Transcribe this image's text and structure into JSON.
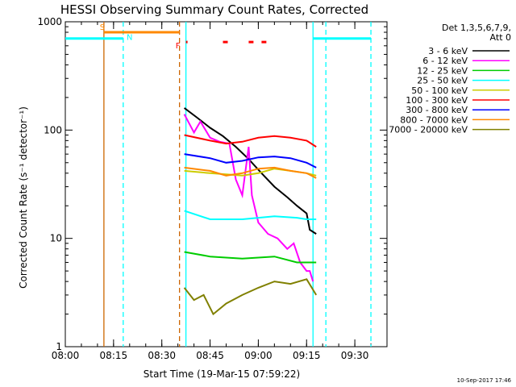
{
  "chart_data": {
    "type": "line",
    "title": "HESSI Observing Summary Count Rates, Corrected",
    "xlabel": "Start Time (19-Mar-15 07:59:22)",
    "ylabel": "Corrected Count Rate (s⁻¹ detector⁻¹)",
    "x_ticks": [
      "08:00",
      "08:15",
      "08:30",
      "08:45",
      "09:00",
      "09:15",
      "09:30"
    ],
    "x_tick_minutes": [
      0,
      15,
      30,
      45,
      60,
      75,
      90
    ],
    "xlim_minutes": [
      0,
      100
    ],
    "y_scale": "log",
    "ylim": [
      1,
      1000
    ],
    "y_ticks": [
      "1",
      "10",
      "100",
      "1000"
    ],
    "y_tick_values": [
      1,
      10,
      100,
      1000
    ],
    "legend_header": [
      "Det 1,3,5,6,7,9,",
      "Att 0"
    ],
    "legend_placement": "right",
    "footer_date": "10-Sep-2017 17:46",
    "series": [
      {
        "name": "3 - 6 keV",
        "color": "#000000",
        "x": [
          37,
          41,
          45,
          49,
          53,
          57,
          61,
          65,
          69,
          72,
          75,
          76,
          78
        ],
        "y": [
          160,
          130,
          105,
          88,
          70,
          54,
          40,
          30,
          24,
          20,
          17,
          12,
          11
        ]
      },
      {
        "name": "6 - 12 keV",
        "color": "#ff00ff",
        "x": [
          37,
          40,
          42,
          45,
          48,
          51,
          53,
          55,
          57,
          58,
          60,
          63,
          66,
          69,
          71,
          73,
          75,
          76,
          77
        ],
        "y": [
          140,
          95,
          120,
          85,
          78,
          75,
          35,
          25,
          70,
          25,
          14,
          11,
          10,
          8,
          9,
          6,
          5,
          5,
          4
        ]
      },
      {
        "name": "12 - 25 keV",
        "color": "#00cc00",
        "x": [
          37,
          45,
          55,
          65,
          72,
          75,
          78
        ],
        "y": [
          7.5,
          6.8,
          6.5,
          6.8,
          6.0,
          6.0,
          6.0
        ]
      },
      {
        "name": "25 - 50 keV",
        "color": "#00ffff",
        "x": [
          37,
          45,
          55,
          65,
          72,
          75,
          78
        ],
        "y": [
          18,
          15,
          15,
          16,
          15.5,
          15,
          15
        ]
      },
      {
        "name": "50 - 100 keV",
        "color": "#cccc00",
        "x": [
          37,
          45,
          55,
          60,
          65,
          70,
          75,
          78
        ],
        "y": [
          42,
          40,
          38,
          40,
          44,
          42,
          40,
          38
        ]
      },
      {
        "name": "100 - 300 keV",
        "color": "#ff0000",
        "x": [
          37,
          45,
          50,
          55,
          60,
          65,
          70,
          75,
          78
        ],
        "y": [
          90,
          80,
          75,
          78,
          85,
          88,
          85,
          80,
          70
        ]
      },
      {
        "name": "300 - 800 keV",
        "color": "#0000ff",
        "x": [
          37,
          45,
          50,
          55,
          60,
          65,
          70,
          75,
          78
        ],
        "y": [
          60,
          55,
          50,
          52,
          56,
          57,
          55,
          50,
          45
        ]
      },
      {
        "name": "800 - 7000 keV",
        "color": "#ff8800",
        "x": [
          37,
          45,
          50,
          55,
          60,
          65,
          70,
          75,
          78
        ],
        "y": [
          45,
          42,
          38,
          40,
          44,
          45,
          42,
          40,
          36
        ]
      },
      {
        "name": "7000 - 20000 keV",
        "color": "#808000",
        "x": [
          37,
          40,
          43,
          46,
          50,
          55,
          60,
          65,
          70,
          75,
          78
        ],
        "y": [
          3.5,
          2.7,
          3.0,
          2.0,
          2.5,
          3.0,
          3.5,
          4.0,
          3.8,
          4.2,
          3.0
        ]
      }
    ],
    "annotations": [
      {
        "text": "S",
        "color": "#ff8800"
      },
      {
        "text": "N",
        "color": "#00ffff"
      },
      {
        "text": "F",
        "color": "#ff0000"
      }
    ],
    "vertical_lines": [
      {
        "x": 12,
        "color": "#cc6600",
        "style": "solid"
      },
      {
        "x": 18,
        "color": "#00ffff",
        "style": "dashed"
      },
      {
        "x": 35.5,
        "color": "#cc6600",
        "style": "dashed"
      },
      {
        "x": 37.5,
        "color": "#00ffff",
        "style": "solid"
      },
      {
        "x": 77,
        "color": "#00ffff",
        "style": "solid"
      },
      {
        "x": 81,
        "color": "#00ffff",
        "style": "dashed"
      },
      {
        "x": 95,
        "color": "#00ffff",
        "style": "dashed"
      }
    ],
    "top_bars": [
      {
        "x1": 0,
        "x2": 18,
        "y": 700,
        "color": "#00ffff"
      },
      {
        "x1": 12,
        "x2": 35.5,
        "y": 800,
        "color": "#ff8800"
      },
      {
        "x1": 77,
        "x2": 95,
        "y": 700,
        "color": "#00ffff"
      }
    ],
    "flare_marks": [
      [
        37.5,
        38
      ],
      [
        49,
        50.5
      ],
      [
        57,
        58.5
      ],
      [
        61,
        62.5
      ]
    ],
    "flare_mark_y": 650
  }
}
